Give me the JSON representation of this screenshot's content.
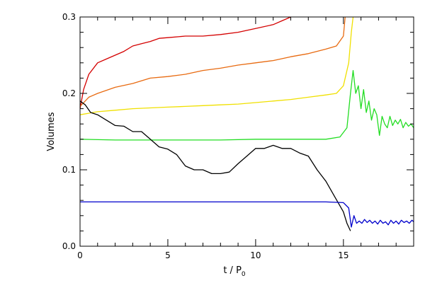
{
  "chart_data": {
    "type": "line",
    "xlabel": "t / P",
    "xlabel_sub": "0",
    "ylabel": "Volumes",
    "xlim": [
      0,
      19
    ],
    "ylim": [
      0,
      0.3
    ],
    "grid": false,
    "x_ticks": [
      0,
      5,
      10,
      15
    ],
    "x_tick_labels": [
      "0",
      "5",
      "10",
      "15"
    ],
    "y_ticks": [
      0,
      0.1,
      0.2,
      0.3
    ],
    "y_tick_labels": [
      "0.0",
      "0.1",
      "0.2",
      "0.3"
    ],
    "series": [
      {
        "color": "#d40000",
        "x": [
          0,
          0.2,
          0.5,
          1.0,
          1.5,
          2.0,
          2.5,
          3.0,
          3.5,
          4.0,
          4.5,
          5.0,
          6.0,
          7.0,
          8.0,
          9.0,
          10.0,
          11.0,
          11.5,
          12.0
        ],
        "y": [
          0.18,
          0.205,
          0.225,
          0.24,
          0.245,
          0.25,
          0.255,
          0.262,
          0.265,
          0.268,
          0.272,
          0.273,
          0.275,
          0.275,
          0.277,
          0.28,
          0.285,
          0.29,
          0.295,
          0.3
        ]
      },
      {
        "color": "#e86a10",
        "x": [
          0,
          0.5,
          1.0,
          2.0,
          3.0,
          4.0,
          5.0,
          6.0,
          7.0,
          8.0,
          9.0,
          10.0,
          11.0,
          12.0,
          13.0,
          14.0,
          14.6,
          15.0,
          15.1
        ],
        "y": [
          0.183,
          0.195,
          0.2,
          0.208,
          0.213,
          0.22,
          0.222,
          0.225,
          0.23,
          0.233,
          0.237,
          0.24,
          0.243,
          0.248,
          0.252,
          0.258,
          0.262,
          0.275,
          0.3
        ]
      },
      {
        "color": "#f0e000",
        "x": [
          0,
          1,
          2,
          3,
          4,
          5,
          6,
          7,
          8,
          9,
          10,
          11,
          12,
          13,
          14,
          14.6,
          15.0,
          15.3,
          15.45,
          15.55
        ],
        "y": [
          0.172,
          0.176,
          0.178,
          0.18,
          0.181,
          0.182,
          0.183,
          0.184,
          0.185,
          0.186,
          0.188,
          0.19,
          0.192,
          0.195,
          0.198,
          0.2,
          0.21,
          0.24,
          0.28,
          0.3
        ]
      },
      {
        "color": "#22dd22",
        "x": [
          0,
          2,
          4,
          6,
          8,
          10,
          12,
          14,
          14.8,
          15.2,
          15.4,
          15.55,
          15.7,
          15.85,
          16.0,
          16.15,
          16.3,
          16.45,
          16.6,
          16.75,
          16.9,
          17.05,
          17.2,
          17.35,
          17.5,
          17.65,
          17.8,
          17.95,
          18.1,
          18.25,
          18.4,
          18.55,
          18.7,
          18.85,
          19.0
        ],
        "y": [
          0.14,
          0.139,
          0.139,
          0.139,
          0.139,
          0.14,
          0.14,
          0.14,
          0.143,
          0.155,
          0.2,
          0.23,
          0.2,
          0.21,
          0.18,
          0.205,
          0.175,
          0.19,
          0.165,
          0.18,
          0.172,
          0.145,
          0.17,
          0.16,
          0.155,
          0.17,
          0.158,
          0.165,
          0.16,
          0.166,
          0.155,
          0.162,
          0.157,
          0.16,
          0.155
        ]
      },
      {
        "color": "#000000",
        "x": [
          0,
          0.3,
          0.6,
          1.0,
          1.5,
          2.0,
          2.5,
          3.0,
          3.5,
          4.0,
          4.5,
          5.0,
          5.5,
          6.0,
          6.5,
          7.0,
          7.5,
          8.0,
          8.5,
          9.0,
          9.5,
          10.0,
          10.5,
          11.0,
          11.5,
          12.0,
          12.5,
          13.0,
          13.5,
          14.0,
          14.5,
          15.0,
          15.2,
          15.4
        ],
        "y": [
          0.19,
          0.185,
          0.175,
          0.172,
          0.165,
          0.158,
          0.157,
          0.15,
          0.15,
          0.14,
          0.13,
          0.127,
          0.12,
          0.105,
          0.1,
          0.1,
          0.095,
          0.095,
          0.097,
          0.108,
          0.118,
          0.128,
          0.128,
          0.132,
          0.128,
          0.128,
          0.122,
          0.118,
          0.1,
          0.085,
          0.065,
          0.045,
          0.03,
          0.02
        ]
      },
      {
        "color": "#0000cc",
        "x": [
          0,
          2,
          4,
          6,
          8,
          10,
          12,
          14,
          15.0,
          15.3,
          15.45,
          15.6,
          15.75,
          15.9,
          16.05,
          16.2,
          16.35,
          16.5,
          16.65,
          16.8,
          16.95,
          17.1,
          17.25,
          17.4,
          17.55,
          17.7,
          17.85,
          18.0,
          18.15,
          18.3,
          18.45,
          18.6,
          18.75,
          18.9,
          19.0
        ],
        "y": [
          0.058,
          0.058,
          0.058,
          0.058,
          0.058,
          0.058,
          0.058,
          0.058,
          0.057,
          0.05,
          0.025,
          0.04,
          0.03,
          0.033,
          0.03,
          0.035,
          0.031,
          0.034,
          0.03,
          0.033,
          0.029,
          0.034,
          0.03,
          0.032,
          0.028,
          0.034,
          0.03,
          0.033,
          0.029,
          0.034,
          0.031,
          0.033,
          0.03,
          0.034,
          0.032
        ]
      }
    ]
  }
}
